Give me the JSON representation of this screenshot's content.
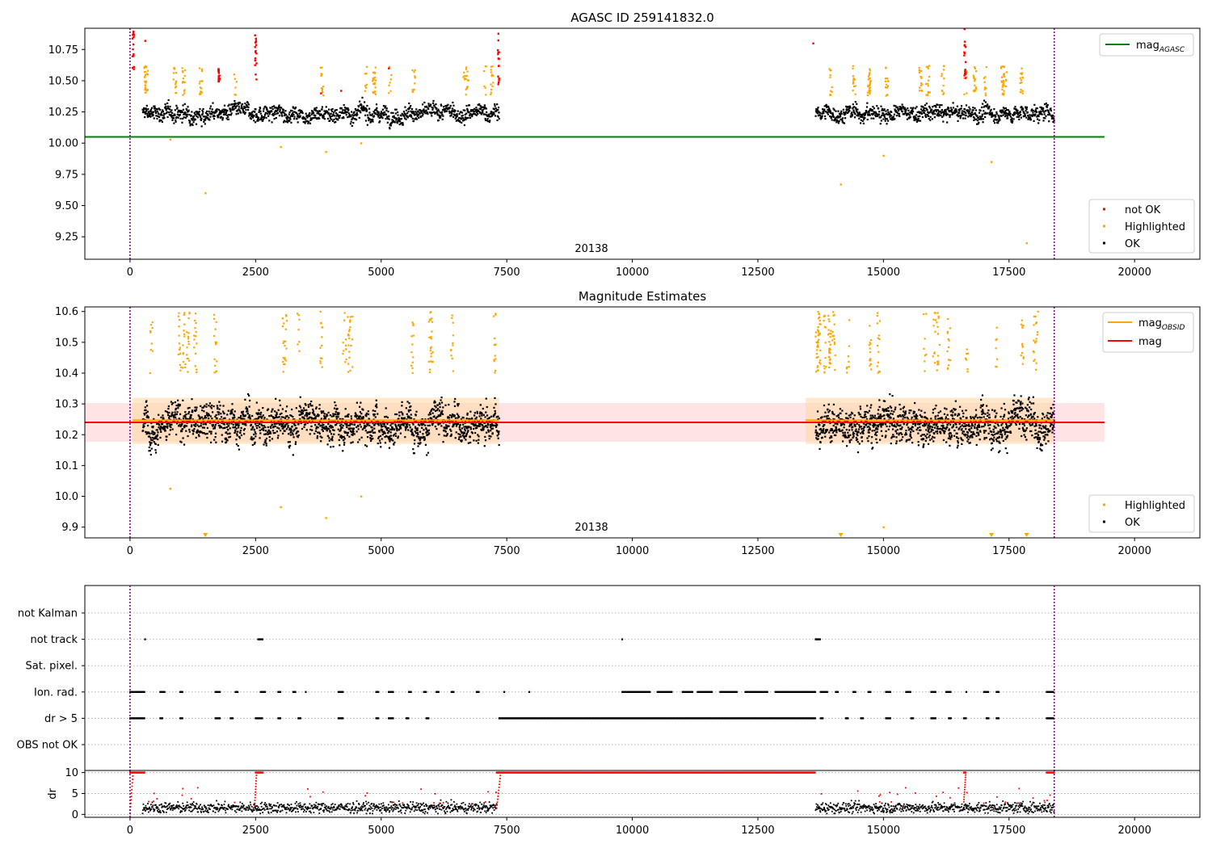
{
  "chart_data": [
    {
      "type": "scatter",
      "title": "AGASC ID 259141832.0",
      "xlim": [
        -900,
        21300
      ],
      "ylim": [
        9.07,
        10.92
      ],
      "xticks": [
        0,
        2500,
        5000,
        7500,
        10000,
        12500,
        15000,
        17500,
        20000
      ],
      "yticks": [
        9.25,
        9.5,
        9.75,
        10.0,
        10.25,
        10.5,
        10.75
      ],
      "ytick_labels": [
        "9.25",
        "9.50",
        "9.75",
        "10.00",
        "10.25",
        "10.50",
        "10.75"
      ],
      "obsid_annotation": "20138",
      "obs_boundaries": [
        0,
        18400
      ],
      "time_segments": [
        [
          250,
          7350
        ],
        [
          13650,
          18400
        ]
      ],
      "hlines": [
        {
          "name": "mag",
          "sub": "AGASC",
          "y": 10.05,
          "x": [
            -900,
            19400
          ],
          "color": "#008000"
        }
      ],
      "ok_center": 10.24,
      "ok_spread": 0.065,
      "highlighted_points": [
        [
          800,
          10.03
        ],
        [
          1500,
          9.6
        ],
        [
          3000,
          9.97
        ],
        [
          3900,
          9.93
        ],
        [
          4600,
          10.0
        ],
        [
          14150,
          9.67
        ],
        [
          15000,
          9.9
        ],
        [
          17150,
          9.85
        ],
        [
          17850,
          9.2
        ]
      ],
      "legend_line": [
        {
          "label": "mag",
          "sub": "AGASC",
          "color": "#008000"
        }
      ],
      "legend_points": [
        {
          "label": "not OK",
          "color": "#ff0000"
        },
        {
          "label": "Highlighted",
          "color": "#ffa500"
        },
        {
          "label": "OK",
          "color": "#000000"
        }
      ]
    },
    {
      "type": "scatter",
      "title": "Magnitude Estimates",
      "xlim": [
        -900,
        21300
      ],
      "ylim": [
        9.865,
        10.615
      ],
      "xticks": [
        0,
        2500,
        5000,
        7500,
        10000,
        12500,
        15000,
        17500,
        20000
      ],
      "yticks": [
        9.9,
        10.0,
        10.1,
        10.2,
        10.3,
        10.4,
        10.5,
        10.6
      ],
      "ytick_labels": [
        "9.9",
        "10.0",
        "10.1",
        "10.2",
        "10.3",
        "10.4",
        "10.5",
        "10.6"
      ],
      "obsid_annotation": "20138",
      "obs_boundaries": [
        0,
        18400
      ],
      "time_segments": [
        [
          250,
          7350
        ],
        [
          13650,
          18400
        ]
      ],
      "mag_obsid": {
        "y": 10.247,
        "band": [
          10.17,
          10.32
        ],
        "color": "#ffa500"
      },
      "mag": {
        "y": 10.24,
        "band": [
          10.177,
          10.303
        ],
        "color": "#ff0000"
      },
      "ok_center": 10.24,
      "ok_spread": 0.06,
      "highlighted_points": [
        [
          800,
          10.025
        ],
        [
          3000,
          9.965
        ],
        [
          3900,
          9.93
        ],
        [
          4600,
          10.0
        ],
        [
          15000,
          9.9
        ]
      ],
      "clipped_low_markers": [
        1500,
        14150,
        17150,
        17850
      ],
      "legend_lines": [
        {
          "label": "mag",
          "sub": "OBSID",
          "color": "#ffa500"
        },
        {
          "label": "mag",
          "sub": "",
          "color": "#ff0000"
        }
      ],
      "legend_points": [
        {
          "label": "Highlighted",
          "color": "#ffa500"
        },
        {
          "label": "OK",
          "color": "#000000"
        }
      ]
    },
    {
      "type": "scatter",
      "title": "",
      "xlim": [
        -900,
        21300
      ],
      "flag_categories": [
        "not Kalman",
        "not track",
        "Sat. pixel.",
        "Ion. rad.",
        "dr > 5",
        "OBS not OK"
      ],
      "flag_runs": {
        "not track": [
          [
            300,
            300
          ],
          [
            2550,
            2650
          ],
          [
            9800,
            9800
          ],
          [
            13650,
            13750
          ]
        ],
        "Ion. rad.": [
          [
            0,
            300
          ],
          [
            600,
            700
          ],
          [
            1000,
            1050
          ],
          [
            1700,
            1800
          ],
          [
            2100,
            2150
          ],
          [
            2600,
            2700
          ],
          [
            2950,
            3000
          ],
          [
            3250,
            3300
          ],
          [
            3500,
            3500
          ],
          [
            4150,
            4250
          ],
          [
            4900,
            4950
          ],
          [
            5150,
            5250
          ],
          [
            5550,
            5600
          ],
          [
            5850,
            5900
          ],
          [
            6100,
            6150
          ],
          [
            6400,
            6450
          ],
          [
            6900,
            6950
          ],
          [
            7450,
            7450
          ],
          [
            7950,
            7950
          ],
          [
            9800,
            10350
          ],
          [
            10500,
            10800
          ],
          [
            11000,
            11200
          ],
          [
            11300,
            11600
          ],
          [
            11750,
            12100
          ],
          [
            12250,
            12700
          ],
          [
            12850,
            13650
          ],
          [
            13750,
            13900
          ],
          [
            14050,
            14100
          ],
          [
            14400,
            14450
          ],
          [
            14700,
            14750
          ],
          [
            15050,
            15150
          ],
          [
            15450,
            15550
          ],
          [
            15950,
            16050
          ],
          [
            16250,
            16350
          ],
          [
            16650,
            16650
          ],
          [
            17000,
            17100
          ],
          [
            17250,
            17300
          ],
          [
            18250,
            18400
          ]
        ],
        "dr > 5": [
          [
            0,
            300
          ],
          [
            600,
            650
          ],
          [
            1000,
            1050
          ],
          [
            1700,
            1800
          ],
          [
            2000,
            2050
          ],
          [
            2500,
            2650
          ],
          [
            2950,
            3000
          ],
          [
            3350,
            3400
          ],
          [
            4150,
            4250
          ],
          [
            4900,
            4950
          ],
          [
            5150,
            5250
          ],
          [
            5500,
            5550
          ],
          [
            5900,
            5950
          ],
          [
            7350,
            13650
          ],
          [
            13750,
            13800
          ],
          [
            14250,
            14300
          ],
          [
            14550,
            14600
          ],
          [
            15050,
            15150
          ],
          [
            15550,
            15600
          ],
          [
            15950,
            16050
          ],
          [
            16300,
            16350
          ],
          [
            16600,
            16650
          ],
          [
            17050,
            17100
          ],
          [
            17250,
            17300
          ],
          [
            18250,
            18400
          ]
        ]
      },
      "dr_panel": {
        "ylabel": "dr",
        "ylim": [
          -0.7,
          10.5
        ],
        "yticks": [
          0,
          5,
          10
        ],
        "threshold": 5,
        "cap": 10,
        "capped_ranges": [
          [
            0,
            300
          ],
          [
            2500,
            2650
          ],
          [
            7300,
            13650
          ],
          [
            16600,
            16650
          ],
          [
            18250,
            18400
          ]
        ],
        "ok_center": 1.6,
        "ok_spread": 0.8
      },
      "xticks": [
        0,
        2500,
        5000,
        7500,
        10000,
        12500,
        15000,
        17500,
        20000
      ],
      "obs_boundaries": [
        0,
        18400
      ]
    }
  ],
  "colors": {
    "ok": "#000000",
    "highlighted": "#ffa500",
    "not_ok": "#ff0000",
    "agasc_line": "#008000",
    "obs_boundary": "#800080",
    "grid": "#b0b0b0"
  }
}
